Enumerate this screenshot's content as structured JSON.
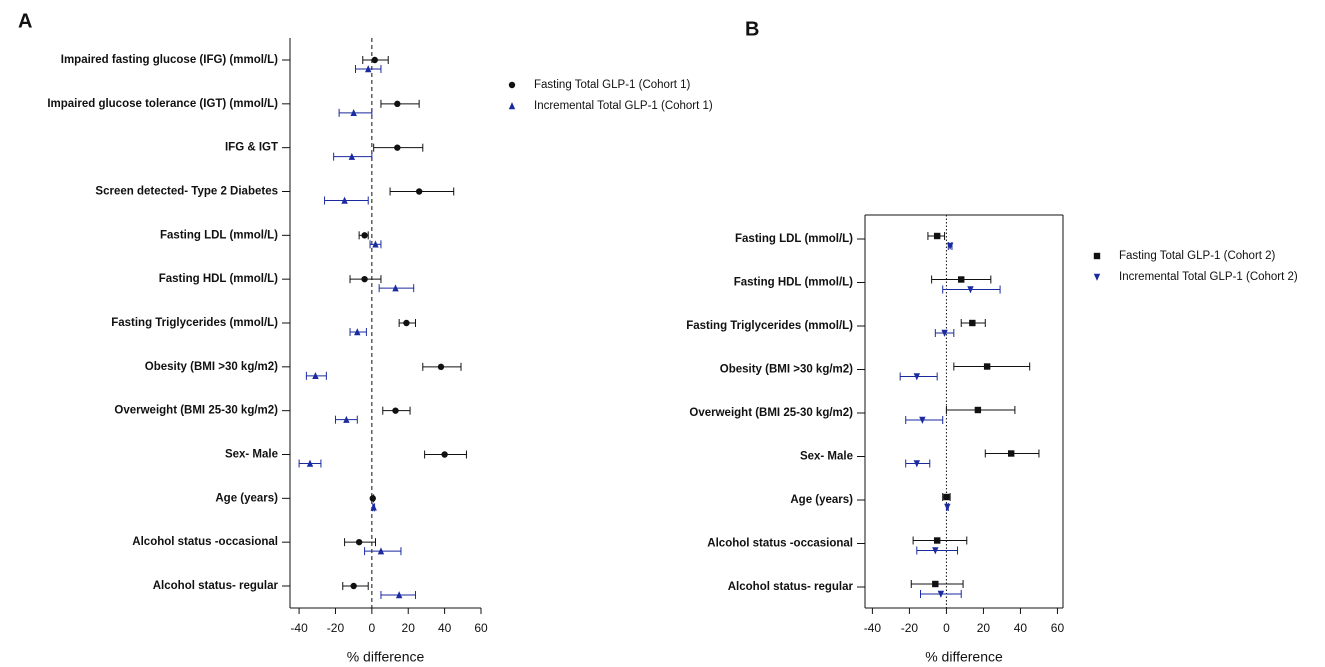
{
  "chart_data": [
    {
      "type": "forest",
      "panel": "A",
      "x_label": "% difference",
      "xlim": [
        -45,
        60
      ],
      "xticks": [
        -40,
        -20,
        0,
        20,
        40,
        60
      ],
      "zero_line": "dashed",
      "frame": "open",
      "categories": [
        "Impaired fasting glucose (IFG) (mmol/L)",
        "Impaired glucose tolerance (IGT) (mmol/L)",
        "IFG & IGT",
        "Screen detected- Type 2 Diabetes",
        "Fasting LDL (mmol/L)",
        "Fasting HDL (mmol/L)",
        "Fasting Triglycerides (mmol/L)",
        "Obesity (BMI >30 kg/m2)",
        "Overweight (BMI 25-30 kg/m2)",
        "Sex- Male",
        "Age (years)",
        "Alcohol status -occasional",
        "Alcohol status- regular"
      ],
      "series": [
        {
          "name": "Fasting Total GLP-1 (Cohort 1)",
          "color": "#111111",
          "marker": "circle",
          "values": [
            1.6,
            14,
            14,
            26,
            -4,
            -4,
            19,
            38,
            13,
            40,
            0.5,
            -7,
            -10
          ],
          "lower": [
            -5,
            5,
            1,
            10,
            -7,
            -12,
            15,
            28,
            6,
            29,
            0,
            -15,
            -16
          ],
          "upper": [
            9,
            26,
            28,
            45,
            -2,
            5,
            24,
            49,
            21,
            52,
            1,
            2,
            -2
          ]
        },
        {
          "name": "Incremental Total GLP-1 (Cohort 1)",
          "color": "#1a2aa0",
          "marker": "triangle",
          "values": [
            -2,
            -10,
            -11,
            -15,
            2,
            13,
            -8,
            -31,
            -14,
            -34,
            1,
            5,
            15
          ],
          "lower": [
            -9,
            -18,
            -21,
            -26,
            -1,
            4,
            -12,
            -36,
            -20,
            -40,
            0.5,
            -4,
            5
          ],
          "upper": [
            5,
            0,
            0,
            -2,
            5,
            23,
            -3,
            -25,
            -8,
            -28,
            1.5,
            16,
            24
          ]
        }
      ]
    },
    {
      "type": "forest",
      "panel": "B",
      "x_label": "% difference",
      "xlim": [
        -44,
        63
      ],
      "xticks": [
        -40,
        -20,
        0,
        20,
        40,
        60
      ],
      "zero_line": "dotted",
      "frame": "box",
      "categories": [
        "Fasting LDL (mmol/L)",
        "Fasting HDL (mmol/L)",
        "Fasting Triglycerides (mmol/L)",
        "Obesity (BMI >30 kg/m2)",
        "Overweight (BMI 25-30 kg/m2)",
        "Sex- Male",
        "Age (years)",
        "Alcohol status -occasional",
        "Alcohol status- regular"
      ],
      "series": [
        {
          "name": "Fasting Total GLP-1 (Cohort 2)",
          "color": "#111111",
          "marker": "square",
          "values": [
            -5,
            8,
            14,
            22,
            17,
            35,
            0,
            -5,
            -6
          ],
          "lower": [
            -10,
            -8,
            8,
            4,
            0,
            21,
            -2,
            -18,
            -19
          ],
          "upper": [
            -1,
            24,
            21,
            45,
            37,
            50,
            2,
            11,
            9
          ]
        },
        {
          "name": "Incremental Total GLP-1 (Cohort 2)",
          "color": "#1a2aa0",
          "marker": "triangle-down",
          "values": [
            2,
            13,
            -1,
            -16,
            -13,
            -16,
            0.5,
            -6,
            -3
          ],
          "lower": [
            1,
            -2,
            -6,
            -25,
            -22,
            -22,
            0,
            -16,
            -14
          ],
          "upper": [
            3,
            29,
            4,
            -5,
            -2,
            -9,
            1,
            6,
            8
          ]
        }
      ]
    }
  ]
}
